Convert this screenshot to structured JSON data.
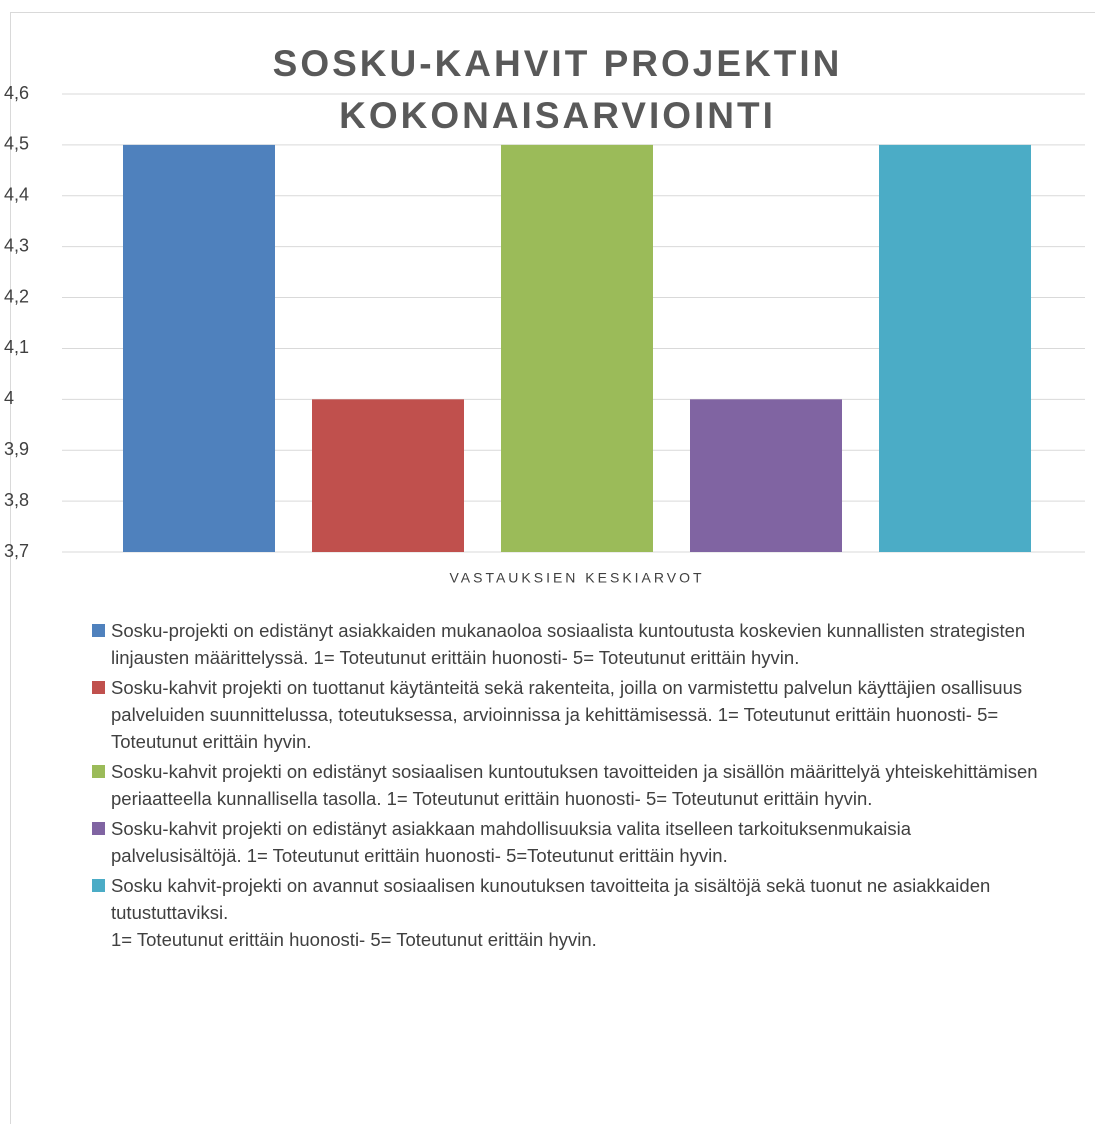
{
  "chart_data": {
    "type": "bar",
    "title": "SOSKU-KAHVIT PROJEKTIN KOKONAISARVIOINTI",
    "categories": [
      "VASTAUKSIEN KESKIARVOT"
    ],
    "series": [
      {
        "name": "Sosku-projekti on edistänyt asiakkaiden mukanaoloa sosiaalista kuntoutusta koskevien kunnallisten strategisten linjausten määrittelyssä. 1= Toteutunut erittäin huonosti- 5= Toteutunut erittäin hyvin.",
        "color": "#4f81bd",
        "values": [
          4.5
        ]
      },
      {
        "name": "Sosku-kahvit projekti on tuottanut käytänteitä sekä rakenteita, joilla on varmistettu palvelun käyttäjien osallisuus palveluiden suunnittelussa, toteutuksessa, arvioinnissa ja kehittämisessä. 1= Toteutunut erittäin huonosti- 5= Toteutunut erittäin hyvin.",
        "color": "#c0504d",
        "values": [
          4.0
        ]
      },
      {
        "name": "Sosku-kahvit projekti on edistänyt sosiaalisen kuntoutuksen tavoitteiden  ja sisällön määrittelyä yhteiskehittämisen periaatteella kunnallisella tasolla. 1= Toteutunut erittäin huonosti- 5= Toteutunut erittäin hyvin.",
        "color": "#9bbb59",
        "values": [
          4.5
        ]
      },
      {
        "name": "Sosku-kahvit projekti on edistänyt asiakkaan mahdollisuuksia valita itselleen tarkoituksenmukaisia palvelusisältöjä. 1= Toteutunut erittäin huonosti- 5=Toteutunut erittäin hyvin.",
        "color": "#8064a2",
        "values": [
          4.0
        ]
      },
      {
        "name": "Sosku kahvit-projekti on avannut sosiaalisen kunoutuksen tavoitteita ja sisältöjä sekä tuonut ne asiakkaiden tutustuttaviksi.\n1= Toteutunut erittäin huonosti- 5= Toteutunut erittäin hyvin.",
        "color": "#4bacc6",
        "values": [
          4.5
        ]
      }
    ],
    "ylim": [
      3.7,
      4.6
    ],
    "yticks": [
      {
        "value": 3.7,
        "label": "3,7"
      },
      {
        "value": 3.8,
        "label": "3,8"
      },
      {
        "value": 3.9,
        "label": "3,9"
      },
      4,
      {
        "value": 4.1,
        "label": "4,1"
      },
      {
        "value": 4.2,
        "label": "4,2"
      },
      {
        "value": 4.3,
        "label": "4,3"
      },
      {
        "value": 4.4,
        "label": "4,4"
      },
      {
        "value": 4.5,
        "label": "4,5"
      },
      {
        "value": 4.6,
        "label": "4,6"
      }
    ],
    "grid": true
  }
}
